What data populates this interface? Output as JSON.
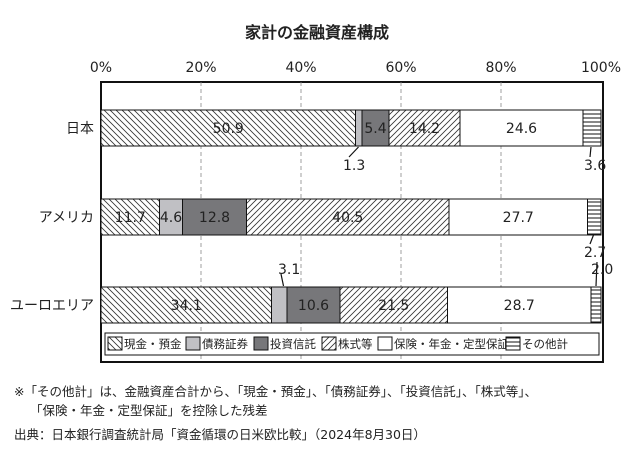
{
  "chart_data": {
    "type": "bar",
    "orientation": "horizontal",
    "stacked": true,
    "title": "家計の金融資産構成",
    "xlim": [
      0,
      100
    ],
    "xticks": [
      "0%",
      "20%",
      "40%",
      "60%",
      "80%",
      "100%"
    ],
    "grid": true,
    "legend_position": "bottom",
    "categories": [
      "日本",
      "アメリカ",
      "ユーロエリア"
    ],
    "series": [
      {
        "name": "現金・預金",
        "pattern": "backslash-hatch",
        "values": [
          50.9,
          11.7,
          34.1
        ]
      },
      {
        "name": "債務証券",
        "color": "#c0c0c4",
        "values": [
          1.3,
          4.6,
          3.1
        ]
      },
      {
        "name": "投資信託",
        "color": "#77777a",
        "values": [
          5.4,
          12.8,
          10.6
        ]
      },
      {
        "name": "株式等",
        "pattern": "slash-hatch",
        "values": [
          14.2,
          40.5,
          21.5
        ]
      },
      {
        "name": "保険・年金・定型保証",
        "color": "#ffffff",
        "values": [
          24.6,
          27.7,
          28.7
        ]
      },
      {
        "name": "その他計",
        "pattern": "horizontal-lines",
        "values": [
          3.6,
          2.7,
          2.0
        ]
      }
    ],
    "data_labels": [
      [
        "50.9",
        "1.3",
        "5.4",
        "14.2",
        "24.6",
        "3.6"
      ],
      [
        "11.7",
        "4.6",
        "12.8",
        "40.5",
        "27.7",
        "2.7"
      ],
      [
        "34.1",
        "3.1",
        "10.6",
        "21.5",
        "28.7",
        "2.0"
      ]
    ]
  },
  "notes": {
    "line1": "※「その他計」は、金融資産合計から、「現金・預金」、「債務証券」、「投資信託」、「株式等」、",
    "line2": "「保険・年金・定型保証」を控除した残差",
    "source": "出典：日本銀行調査統計局「資金循環の日米欧比較」（2024年8月30日）"
  }
}
